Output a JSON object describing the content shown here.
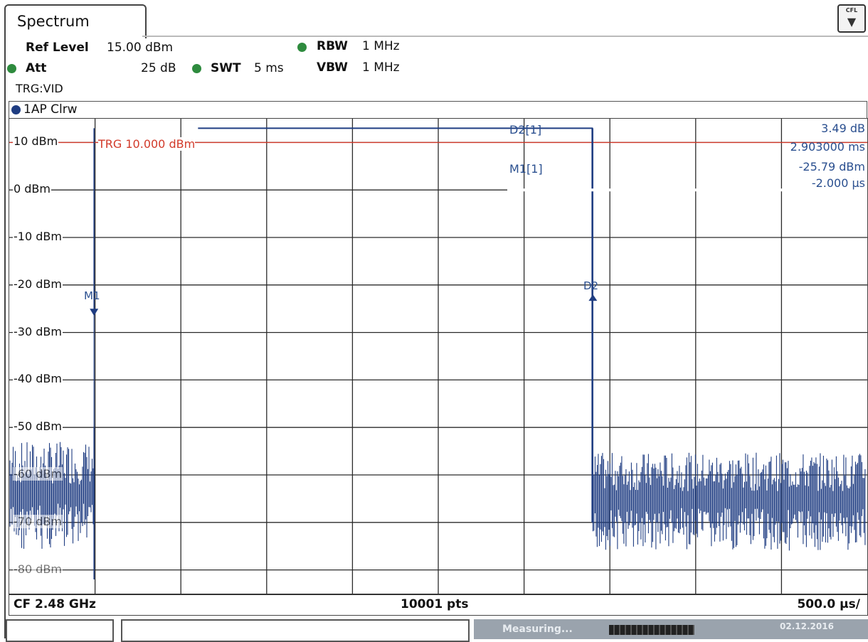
{
  "tab": {
    "title": "Spectrum"
  },
  "cfl_badge": {
    "text": "CFL",
    "icon": "triangle-down-icon"
  },
  "settings": {
    "ref_level_label": "Ref Level",
    "ref_level_value": "15.00 dBm",
    "att_label": "Att",
    "att_value": "25 dB",
    "swt_label": "SWT",
    "swt_value": "5 ms",
    "rbw_label": "RBW",
    "rbw_value": "1 MHz",
    "vbw_label": "VBW",
    "vbw_value": "1 MHz",
    "trg": "TRG:VID"
  },
  "trace": {
    "label": "1AP Clrw",
    "color": "#1f3d82"
  },
  "y_axis": {
    "labels": [
      "10 dBm",
      "0 dBm",
      "-10 dBm",
      "-20 dBm",
      "-30 dBm",
      "-40 dBm",
      "-50 dBm",
      "-60 dBm",
      "-70 dBm",
      "-80 dBm"
    ]
  },
  "trigger_line": {
    "label": "TRG 10.000 dBm",
    "color": "#d23a2a"
  },
  "markers": {
    "d2_label": "D2[1]",
    "d2_value_db": "3.49 dB",
    "d2_value_time": "2.903000 ms",
    "m1_label": "M1[1]",
    "m1_value_dbm": "-25.79 dBm",
    "m1_value_time": "-2.000 µs",
    "m1_flag": "M1",
    "d2_flag": "D2"
  },
  "footer": {
    "cf": "CF 2.48 GHz",
    "pts": "10001 pts",
    "span": "500.0 µs/"
  },
  "status": {
    "measuring": "Measuring...",
    "date": "02.12.2016"
  },
  "chart_data": {
    "type": "line",
    "x_unit": "µs",
    "xlim": [
      -500,
      4500
    ],
    "ylim": [
      -85,
      15
    ],
    "series": [
      {
        "name": "1AP Clrw",
        "x": [
          -500,
          -6,
          -6,
          2897,
          2897,
          4500
        ],
        "y": [
          -68,
          -68,
          10,
          13,
          -68,
          -65
        ]
      }
    ]
  }
}
